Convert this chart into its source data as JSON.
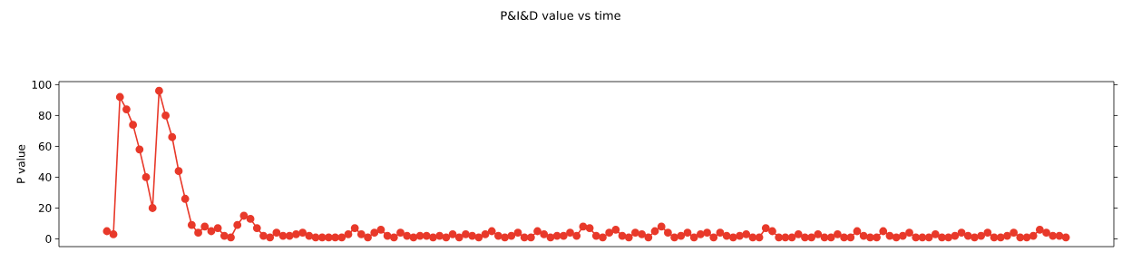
{
  "chart_data": {
    "type": "line",
    "title": "P&I&D value vs time",
    "ylabel": "P value",
    "categories": [
      null,
      null,
      null,
      null,
      null,
      null,
      null,
      null,
      null,
      null,
      null,
      null,
      null,
      null,
      null,
      null,
      null,
      null,
      null,
      null,
      null,
      null,
      null,
      null,
      null,
      null,
      null,
      null,
      null,
      null,
      null,
      null,
      null,
      null,
      null,
      null,
      null,
      null,
      null,
      null,
      null,
      null,
      null,
      null,
      null,
      null,
      null,
      null,
      null,
      null,
      null,
      null,
      null,
      null,
      null,
      null,
      null,
      null,
      null,
      null,
      null,
      null,
      null,
      null,
      null,
      null,
      null,
      null,
      null,
      null,
      null,
      null,
      null,
      null,
      null,
      null,
      null,
      null,
      null,
      null,
      null,
      null,
      null,
      null,
      null,
      null,
      null,
      null,
      null,
      null,
      null,
      null,
      null,
      null,
      null,
      null,
      null,
      null,
      null,
      null,
      null,
      null,
      null,
      null,
      null,
      null,
      null,
      null,
      null,
      null,
      null,
      null,
      null,
      null,
      null,
      null,
      null,
      null,
      null,
      null,
      null,
      null,
      null,
      null,
      null,
      null,
      null,
      null,
      null,
      null,
      null,
      null,
      null,
      null,
      null,
      null,
      null,
      null,
      null,
      null,
      null,
      null,
      null,
      null,
      null,
      null,
      null,
      null
    ],
    "values": [
      5,
      3,
      92,
      84,
      74,
      58,
      40,
      20,
      96,
      80,
      66,
      44,
      26,
      9,
      4,
      8,
      5,
      7,
      2,
      1,
      9,
      15,
      13,
      7,
      2,
      1,
      4,
      2,
      2,
      3,
      4,
      2,
      1,
      1,
      1,
      1,
      1,
      3,
      7,
      3,
      1,
      4,
      6,
      2,
      1,
      4,
      2,
      1,
      2,
      2,
      1,
      2,
      1,
      3,
      1,
      3,
      2,
      1,
      3,
      5,
      2,
      1,
      2,
      4,
      1,
      1,
      5,
      3,
      1,
      2,
      2,
      4,
      2,
      8,
      7,
      2,
      1,
      4,
      6,
      2,
      1,
      4,
      3,
      1,
      5,
      8,
      4,
      1,
      2,
      4,
      1,
      3,
      4,
      1,
      4,
      2,
      1,
      2,
      3,
      1,
      1,
      7,
      5,
      1,
      1,
      1,
      3,
      1,
      1,
      3,
      1,
      1,
      3,
      1,
      1,
      5,
      2,
      1,
      1,
      5,
      2,
      1,
      2,
      4,
      1,
      1,
      1,
      3,
      1,
      1,
      2,
      4,
      2,
      1,
      2,
      4,
      1,
      1,
      2,
      4,
      1,
      1,
      2,
      6,
      4,
      2,
      2,
      1
    ],
    "color": "#e8392a",
    "marker": "circle",
    "line_style": "solid",
    "ylim": [
      -5,
      102
    ],
    "yticks": [
      0,
      20,
      40,
      60,
      80,
      100
    ]
  }
}
